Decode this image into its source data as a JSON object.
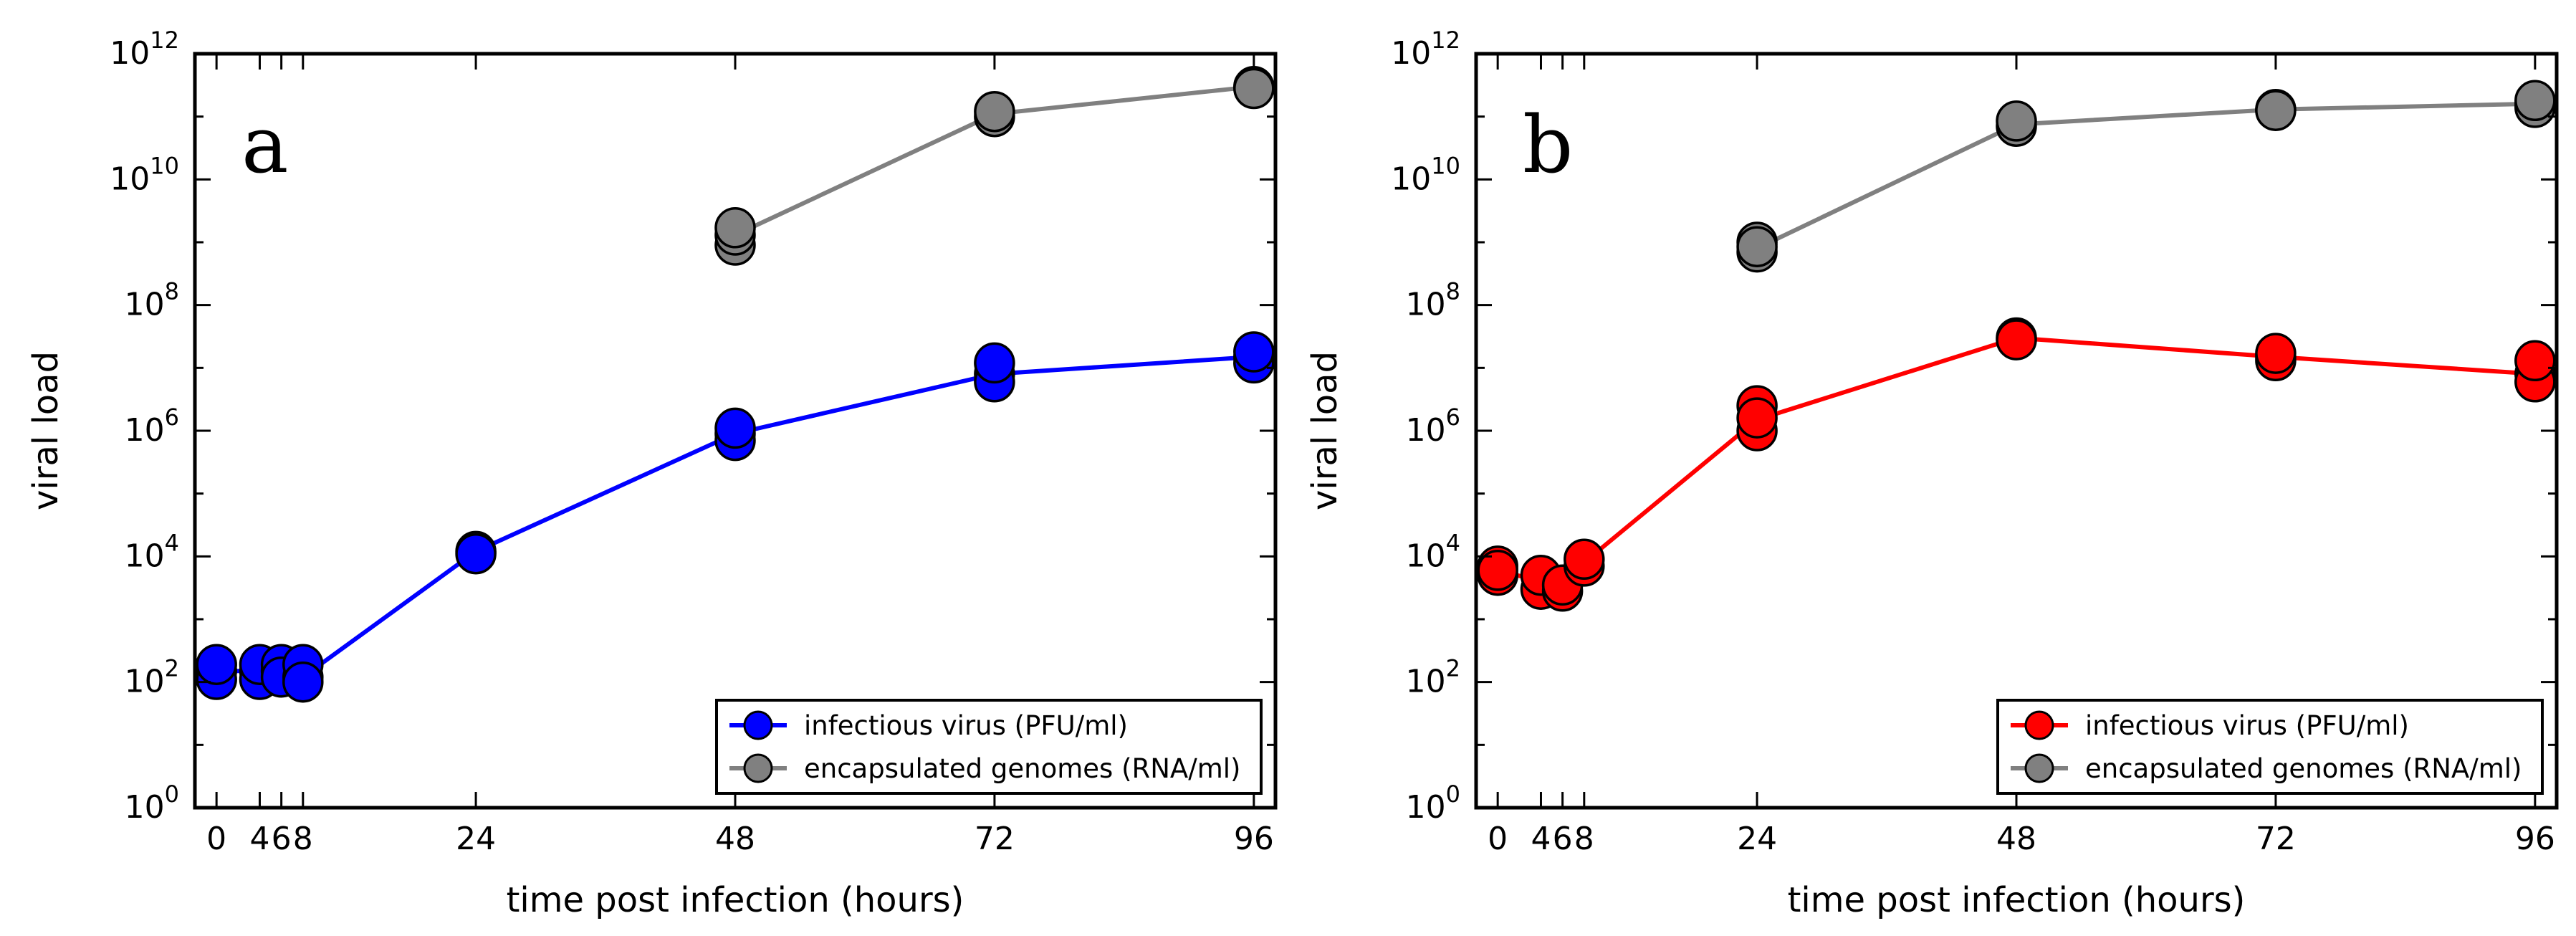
{
  "chart_data": [
    {
      "type": "line",
      "panel_label": "a",
      "xlabel": "time post infection (hours)",
      "ylabel": "viral load",
      "yscale": "log10",
      "xlim": [
        -2,
        98
      ],
      "ylim_exponent": [
        0,
        12
      ],
      "xticks": [
        0,
        4,
        6,
        8,
        24,
        48,
        72,
        96
      ],
      "xtick_labels": [
        "0",
        "4",
        "6",
        "8",
        "24",
        "48",
        "72",
        "96"
      ],
      "ytick_exponents": [
        0,
        2,
        4,
        6,
        8,
        10,
        12
      ],
      "ytick_base": "10",
      "legend_position": "lower-right",
      "series": [
        {
          "name": "infectious virus (PFU/ml)",
          "color": "#0000ff",
          "line": [
            [
              0,
              150
            ],
            [
              4,
              150
            ],
            [
              6,
              150
            ],
            [
              8,
              120
            ],
            [
              24,
              12000
            ],
            [
              48,
              900000
            ],
            [
              72,
              8000000
            ],
            [
              96,
              15000000
            ]
          ],
          "points": [
            [
              0,
              150
            ],
            [
              0,
              110
            ],
            [
              0,
              190
            ],
            [
              4,
              150
            ],
            [
              4,
              110
            ],
            [
              4,
              190
            ],
            [
              6,
              150
            ],
            [
              6,
              190
            ],
            [
              6,
              120
            ],
            [
              8,
              120
            ],
            [
              8,
              190
            ],
            [
              8,
              100
            ],
            [
              24,
              12000
            ],
            [
              24,
              11000
            ],
            [
              48,
              900000
            ],
            [
              48,
              700000
            ],
            [
              48,
              1100000
            ],
            [
              72,
              8000000
            ],
            [
              72,
              6000000
            ],
            [
              72,
              12000000
            ],
            [
              96,
              15000000
            ],
            [
              96,
              12000000
            ],
            [
              96,
              18000000
            ]
          ]
        },
        {
          "name": "encapsulated genomes (RNA/ml)",
          "color": "#808080",
          "line": [
            [
              48,
              1300000000
            ],
            [
              72,
              110000000000
            ],
            [
              96,
              300000000000
            ]
          ],
          "points": [
            [
              48,
              900000000
            ],
            [
              48,
              1300000000
            ],
            [
              48,
              1700000000
            ],
            [
              72,
              100000000000
            ],
            [
              72,
              120000000000
            ],
            [
              96,
              300000000000
            ],
            [
              96,
              280000000000
            ]
          ]
        }
      ]
    },
    {
      "type": "line",
      "panel_label": "b",
      "xlabel": "time post infection (hours)",
      "ylabel": "viral load",
      "yscale": "log10",
      "xlim": [
        -2,
        98
      ],
      "ylim_exponent": [
        0,
        12
      ],
      "xticks": [
        0,
        4,
        6,
        8,
        24,
        48,
        72,
        96
      ],
      "xtick_labels": [
        "0",
        "4",
        "6",
        "8",
        "24",
        "48",
        "72",
        "96"
      ],
      "ytick_exponents": [
        0,
        2,
        4,
        6,
        8,
        10,
        12
      ],
      "ytick_base": "10",
      "legend_position": "lower-right",
      "series": [
        {
          "name": "infectious virus (PFU/ml)",
          "color": "#ff0000",
          "line": [
            [
              0,
              6000
            ],
            [
              4,
              4000
            ],
            [
              6,
              3000
            ],
            [
              8,
              8000
            ],
            [
              24,
              1500000
            ],
            [
              48,
              30000000
            ],
            [
              72,
              15000000
            ],
            [
              96,
              8000000
            ]
          ],
          "points": [
            [
              0,
              5000
            ],
            [
              0,
              7000
            ],
            [
              0,
              6000
            ],
            [
              4,
              3000
            ],
            [
              4,
              5000
            ],
            [
              6,
              2800
            ],
            [
              6,
              3500
            ],
            [
              8,
              7000
            ],
            [
              8,
              9000
            ],
            [
              24,
              1000000
            ],
            [
              24,
              2500000
            ],
            [
              24,
              1600000
            ],
            [
              48,
              30000000
            ],
            [
              48,
              28000000
            ],
            [
              72,
              15000000
            ],
            [
              72,
              13000000
            ],
            [
              72,
              17000000
            ],
            [
              96,
              8000000
            ],
            [
              96,
              6000000
            ],
            [
              96,
              13000000
            ]
          ]
        },
        {
          "name": "encapsulated genomes (RNA/ml)",
          "color": "#808080",
          "line": [
            [
              24,
              800000000
            ],
            [
              48,
              75000000000
            ],
            [
              72,
              130000000000
            ],
            [
              96,
              160000000000
            ]
          ],
          "points": [
            [
              24,
              700000000
            ],
            [
              24,
              1000000000
            ],
            [
              24,
              850000000
            ],
            [
              48,
              70000000000
            ],
            [
              48,
              85000000000
            ],
            [
              72,
              130000000000
            ],
            [
              72,
              125000000000
            ],
            [
              96,
              160000000000
            ],
            [
              96,
              140000000000
            ],
            [
              96,
              180000000000
            ]
          ]
        }
      ]
    }
  ]
}
